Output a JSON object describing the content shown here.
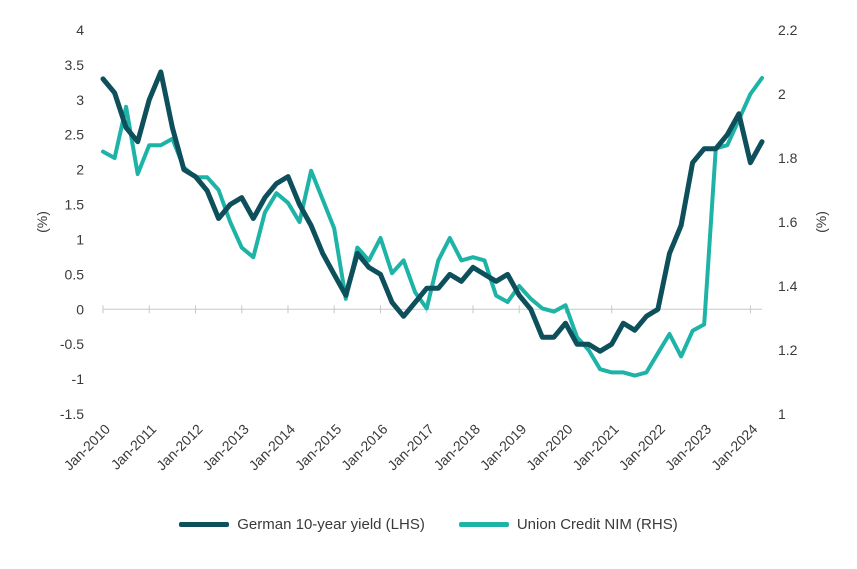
{
  "chart_data": {
    "type": "line",
    "title": "",
    "xlabel": "",
    "ylabel_left": "(%)",
    "ylabel_right": "(%)",
    "ylim_left": [
      -1.5,
      4
    ],
    "ylim_right": [
      1,
      2.2
    ],
    "yticks_left": [
      "-1.5",
      "-1",
      "-0.5",
      "0",
      "0.5",
      "1",
      "1.5",
      "2",
      "2.5",
      "3",
      "3.5",
      "4"
    ],
    "yticks_right": [
      "1",
      "1.2",
      "1.4",
      "1.6",
      "1.8",
      "2",
      "2.2"
    ],
    "xticks": [
      "Jan-2010",
      "Jan-2011",
      "Jan-2012",
      "Jan-2013",
      "Jan-2014",
      "Jan-2015",
      "Jan-2016",
      "Jan-2017",
      "Jan-2018",
      "Jan-2019",
      "Jan-2020",
      "Jan-2021",
      "Jan-2022",
      "Jan-2023",
      "Jan-2024"
    ],
    "x_range": [
      "2010-01",
      "2024-04"
    ],
    "grid": false,
    "legend_position": "bottom",
    "series": [
      {
        "name": "German 10-year yield (LHS)",
        "axis": "left",
        "color": "#0d4f5a",
        "x": [
          "2010-01",
          "2010-04",
          "2010-07",
          "2010-10",
          "2011-01",
          "2011-04",
          "2011-07",
          "2011-10",
          "2012-01",
          "2012-04",
          "2012-07",
          "2012-10",
          "2013-01",
          "2013-04",
          "2013-07",
          "2013-10",
          "2014-01",
          "2014-04",
          "2014-07",
          "2014-10",
          "2015-01",
          "2015-04",
          "2015-07",
          "2015-10",
          "2016-01",
          "2016-04",
          "2016-07",
          "2016-10",
          "2017-01",
          "2017-04",
          "2017-07",
          "2017-10",
          "2018-01",
          "2018-04",
          "2018-07",
          "2018-10",
          "2019-01",
          "2019-04",
          "2019-07",
          "2019-10",
          "2020-01",
          "2020-04",
          "2020-07",
          "2020-10",
          "2021-01",
          "2021-04",
          "2021-07",
          "2021-10",
          "2022-01",
          "2022-04",
          "2022-07",
          "2022-10",
          "2023-01",
          "2023-04",
          "2023-07",
          "2023-10",
          "2024-01",
          "2024-04"
        ],
        "values": [
          3.3,
          3.1,
          2.6,
          2.4,
          3.0,
          3.4,
          2.6,
          2.0,
          1.9,
          1.7,
          1.3,
          1.5,
          1.6,
          1.3,
          1.6,
          1.8,
          1.9,
          1.5,
          1.2,
          0.8,
          0.5,
          0.2,
          0.8,
          0.6,
          0.5,
          0.1,
          -0.1,
          0.1,
          0.3,
          0.3,
          0.5,
          0.4,
          0.6,
          0.5,
          0.4,
          0.5,
          0.2,
          0.0,
          -0.4,
          -0.4,
          -0.2,
          -0.5,
          -0.5,
          -0.6,
          -0.5,
          -0.2,
          -0.3,
          -0.1,
          0.0,
          0.8,
          1.2,
          2.1,
          2.3,
          2.3,
          2.5,
          2.8,
          2.1,
          2.4
        ]
      },
      {
        "name": "Union Credit NIM (RHS)",
        "axis": "right",
        "color": "#1db3a6",
        "x": [
          "2010-01",
          "2010-04",
          "2010-07",
          "2010-10",
          "2011-01",
          "2011-04",
          "2011-07",
          "2011-10",
          "2012-01",
          "2012-04",
          "2012-07",
          "2012-10",
          "2013-01",
          "2013-04",
          "2013-07",
          "2013-10",
          "2014-01",
          "2014-04",
          "2014-07",
          "2014-10",
          "2015-01",
          "2015-04",
          "2015-07",
          "2015-10",
          "2016-01",
          "2016-04",
          "2016-07",
          "2016-10",
          "2017-01",
          "2017-04",
          "2017-07",
          "2017-10",
          "2018-01",
          "2018-04",
          "2018-07",
          "2018-10",
          "2019-01",
          "2019-04",
          "2019-07",
          "2019-10",
          "2020-01",
          "2020-04",
          "2020-07",
          "2020-10",
          "2021-01",
          "2021-04",
          "2021-07",
          "2021-10",
          "2022-01",
          "2022-04",
          "2022-07",
          "2022-10",
          "2023-01",
          "2023-04",
          "2023-07",
          "2023-10",
          "2024-01",
          "2024-04"
        ],
        "values": [
          1.82,
          1.8,
          1.96,
          1.75,
          1.84,
          1.84,
          1.86,
          1.77,
          1.74,
          1.74,
          1.7,
          1.6,
          1.52,
          1.49,
          1.63,
          1.69,
          1.66,
          1.6,
          1.76,
          1.67,
          1.58,
          1.36,
          1.52,
          1.48,
          1.55,
          1.44,
          1.48,
          1.38,
          1.33,
          1.48,
          1.55,
          1.48,
          1.49,
          1.48,
          1.37,
          1.35,
          1.4,
          1.36,
          1.33,
          1.32,
          1.34,
          1.24,
          1.2,
          1.14,
          1.13,
          1.13,
          1.12,
          1.13,
          1.19,
          1.25,
          1.18,
          1.26,
          1.28,
          1.83,
          1.84,
          1.92,
          2.0,
          2.05
        ]
      }
    ]
  },
  "legend": {
    "items": [
      {
        "label": "German 10-year yield (LHS)",
        "color": "#0d4f5a"
      },
      {
        "label": "Union Credit NIM (RHS)",
        "color": "#1db3a6"
      }
    ]
  }
}
